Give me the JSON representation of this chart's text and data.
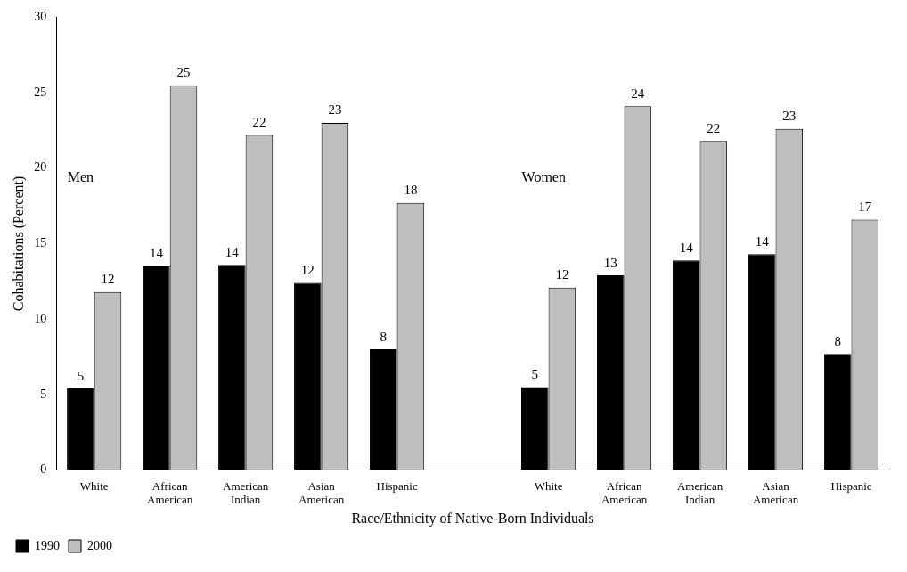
{
  "chart_data": {
    "type": "bar",
    "xlabel": "Race/Ethnicity of Native-Born Individuals",
    "ylabel": "Cohabitations (Percent)",
    "categories": [
      "White",
      "African American",
      "American Indian",
      "Asian American",
      "Hispanic",
      null,
      "White",
      "African American",
      "American Indian",
      "Asian American",
      "Hispanic"
    ],
    "series": [
      {
        "name": "1990",
        "color": "#000000",
        "values": [
          5.4,
          13.5,
          13.6,
          12.4,
          8.0,
          null,
          5.5,
          12.9,
          13.9,
          14.3,
          7.7
        ],
        "value_labels": [
          "5",
          "14",
          "14",
          "12",
          "8",
          null,
          "5",
          "13",
          "14",
          "14",
          "8"
        ]
      },
      {
        "name": "2000",
        "color": "#bfbfbf",
        "values": [
          11.8,
          25.5,
          22.2,
          23.0,
          17.7,
          null,
          12.1,
          24.1,
          21.8,
          22.6,
          16.6
        ],
        "value_labels": [
          "12",
          "25",
          "22",
          "23",
          "18",
          null,
          "12",
          "24",
          "22",
          "23",
          "17"
        ]
      }
    ],
    "ylim": [
      0,
      30
    ],
    "yticks": [
      0,
      5,
      10,
      15,
      20,
      25,
      30
    ],
    "grid": false,
    "legend": "bottom left",
    "annotations": [
      "Men",
      "Women"
    ]
  }
}
